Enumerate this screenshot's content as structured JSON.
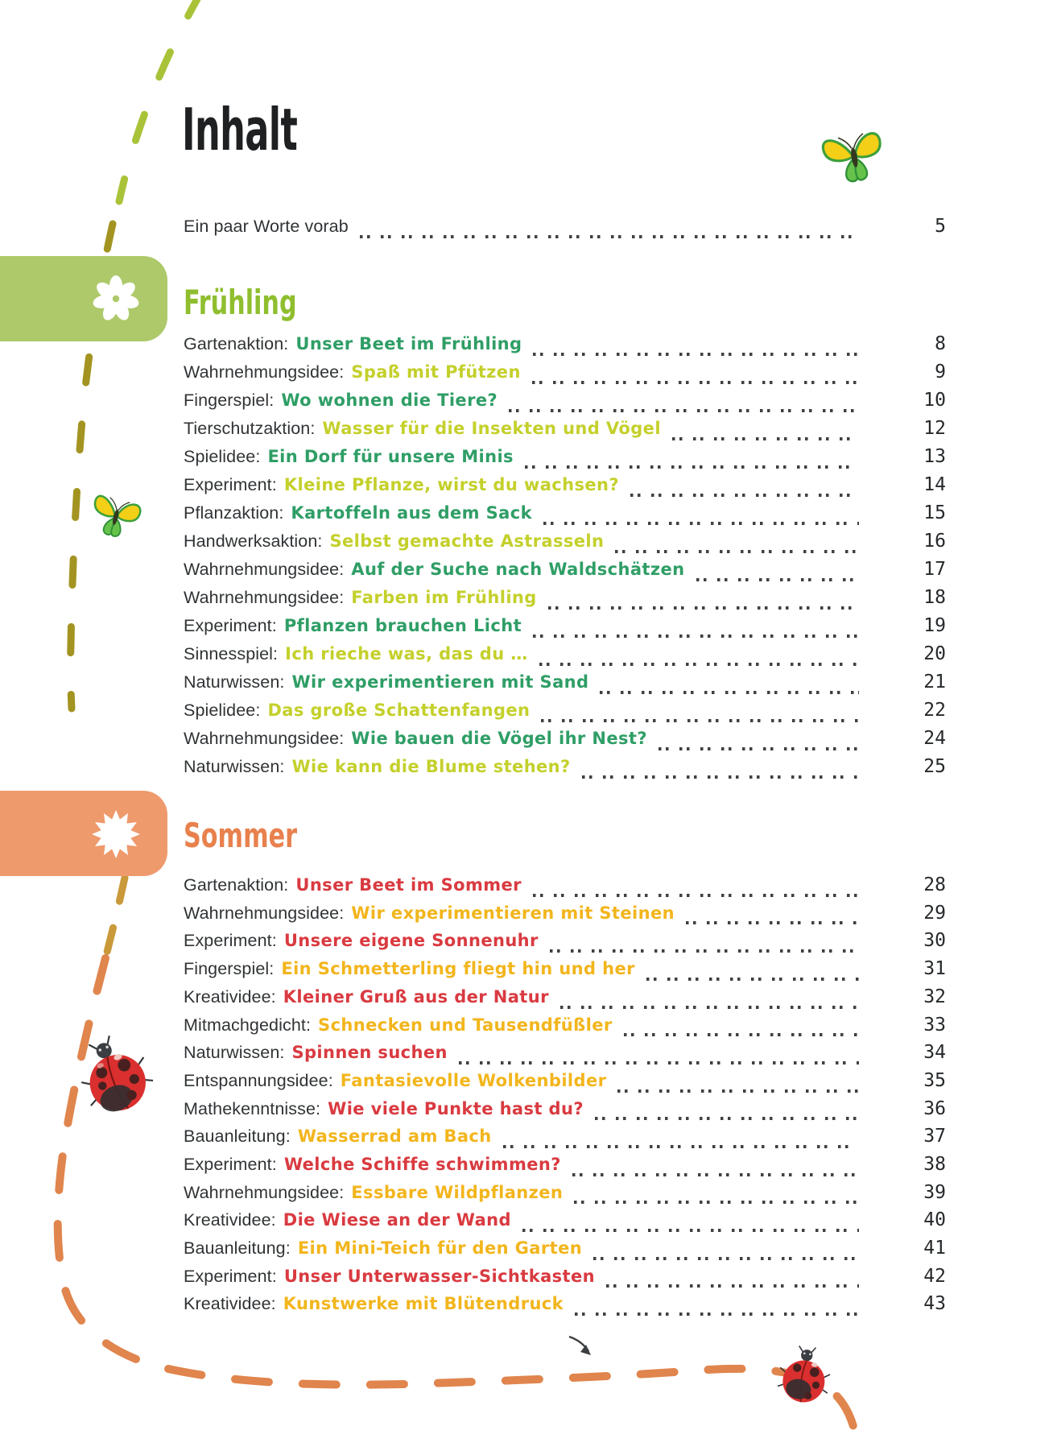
{
  "page_title": "Inhalt",
  "preface": {
    "label": "Ein paar Worte vorab",
    "page": "5"
  },
  "sections": [
    {
      "title": "Frühling",
      "heading_color": "#8fbe2f",
      "entries": [
        {
          "category": "Gartenaktion:",
          "title": "Unser Beet im Frühling",
          "page": "8",
          "title_color": "#2f9e66"
        },
        {
          "category": "Wahrnehmungsidee:",
          "title": "Spaß mit Pfützen",
          "page": "9",
          "title_color": "#c4d02b"
        },
        {
          "category": "Fingerspiel:",
          "title": "Wo wohnen die Tiere?",
          "page": "10",
          "title_color": "#2f9e66"
        },
        {
          "category": "Tierschutzaktion:",
          "title": "Wasser für die Insekten und Vögel",
          "page": "12",
          "title_color": "#c4d02b"
        },
        {
          "category": "Spielidee:",
          "title": "Ein Dorf für unsere Minis",
          "page": "13",
          "title_color": "#2f9e66"
        },
        {
          "category": "Experiment:",
          "title": "Kleine Pflanze, wirst du wachsen?",
          "page": "14",
          "title_color": "#c4d02b"
        },
        {
          "category": "Pflanzaktion:",
          "title": "Kartoffeln aus dem Sack",
          "page": "15",
          "title_color": "#2f9e66"
        },
        {
          "category": "Handwerksaktion:",
          "title": "Selbst gemachte Astrasseln",
          "page": "16",
          "title_color": "#c4d02b"
        },
        {
          "category": "Wahrnehmungsidee:",
          "title": "Auf der Suche nach Waldschätzen",
          "page": "17",
          "title_color": "#2f9e66"
        },
        {
          "category": "Wahrnehmungsidee:",
          "title": "Farben im Frühling",
          "page": "18",
          "title_color": "#c4d02b"
        },
        {
          "category": "Experiment:",
          "title": "Pflanzen brauchen Licht",
          "page": "19",
          "title_color": "#2f9e66"
        },
        {
          "category": "Sinnesspiel:",
          "title": "Ich rieche was, das du …",
          "page": "20",
          "title_color": "#c4d02b"
        },
        {
          "category": "Naturwissen:",
          "title": "Wir experimentieren mit Sand",
          "page": "21",
          "title_color": "#2f9e66"
        },
        {
          "category": "Spielidee:",
          "title": "Das große Schattenfangen",
          "page": "22",
          "title_color": "#c4d02b"
        },
        {
          "category": "Wahrnehmungsidee:",
          "title": "Wie bauen die Vögel ihr Nest?",
          "page": "24",
          "title_color": "#2f9e66"
        },
        {
          "category": "Naturwissen:",
          "title": "Wie kann die Blume stehen?",
          "page": "25",
          "title_color": "#c4d02b"
        }
      ]
    },
    {
      "title": "Sommer",
      "heading_color": "#e8814d",
      "entries": [
        {
          "category": "Gartenaktion:",
          "title": "Unser Beet im Sommer",
          "page": "28",
          "title_color": "#d93a40"
        },
        {
          "category": "Wahrnehmungsidee:",
          "title": "Wir experimentieren mit Steinen",
          "page": "29",
          "title_color": "#f2b51c"
        },
        {
          "category": "Experiment:",
          "title": "Unsere eigene Sonnenuhr",
          "page": "30",
          "title_color": "#d93a40"
        },
        {
          "category": "Fingerspiel:",
          "title": "Ein Schmetterling fliegt hin und her",
          "page": "31",
          "title_color": "#f2b51c"
        },
        {
          "category": "Kreatividee:",
          "title": "Kleiner Gruß aus der Natur",
          "page": "32",
          "title_color": "#d93a40"
        },
        {
          "category": "Mitmachgedicht:",
          "title": "Schnecken und Tausendfüßler",
          "page": "33",
          "title_color": "#f2b51c"
        },
        {
          "category": "Naturwissen:",
          "title": "Spinnen suchen",
          "page": "34",
          "title_color": "#d93a40"
        },
        {
          "category": "Entspannungsidee:",
          "title": "Fantasievolle Wolkenbilder",
          "page": "35",
          "title_color": "#f2b51c"
        },
        {
          "category": "Mathekenntnisse:",
          "title": "Wie viele Punkte hast du?",
          "page": "36",
          "title_color": "#d93a40"
        },
        {
          "category": "Bauanleitung:",
          "title": "Wasserrad am Bach",
          "page": "37",
          "title_color": "#f2b51c"
        },
        {
          "category": "Experiment:",
          "title": "Welche Schiffe schwimmen?",
          "page": "38",
          "title_color": "#d93a40"
        },
        {
          "category": "Wahrnehmungsidee:",
          "title": "Essbare Wildpflanzen",
          "page": "39",
          "title_color": "#f2b51c"
        },
        {
          "category": "Kreatividee:",
          "title": "Die Wiese an der Wand",
          "page": "40",
          "title_color": "#d93a40"
        },
        {
          "category": "Bauanleitung:",
          "title": "Ein Mini-Teich für den Garten",
          "page": "41",
          "title_color": "#f2b51c"
        },
        {
          "category": "Experiment:",
          "title": "Unser Unterwasser-Sichtkasten",
          "page": "42",
          "title_color": "#d93a40"
        },
        {
          "category": "Kreatividee:",
          "title": "Kunstwerke mit Blütendruck",
          "page": "43",
          "title_color": "#f2b51c"
        }
      ]
    }
  ],
  "decorations": {
    "trail_colors": {
      "spring_green": "#a9c339",
      "olive": "#a39422",
      "gold": "#c9993a",
      "summer_orange": "#e0854d"
    },
    "tabs": [
      {
        "name": "spring-tab",
        "icon": "flower-icon",
        "color": "#adc96a"
      },
      {
        "name": "summer-tab",
        "icon": "sun-icon",
        "color": "#ee9a6d"
      }
    ],
    "critters": [
      {
        "name": "butterfly-icon-top-right"
      },
      {
        "name": "butterfly-icon-left"
      },
      {
        "name": "ladybug-icon-left"
      },
      {
        "name": "ladybug-icon-bottom-right"
      }
    ]
  }
}
